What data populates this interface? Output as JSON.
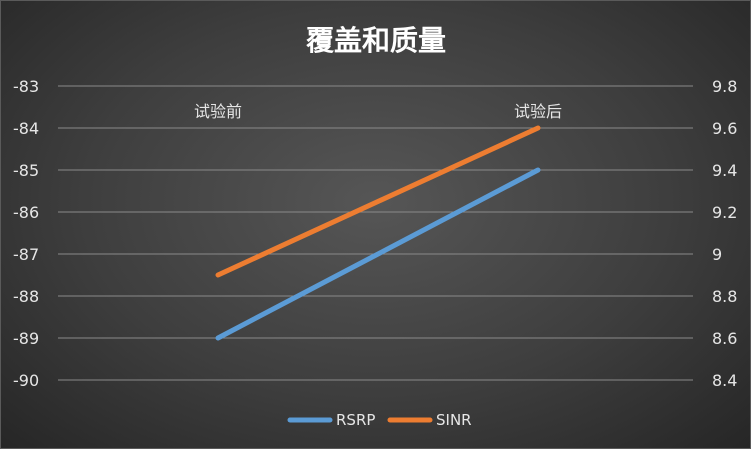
{
  "chart_data": {
    "type": "line",
    "title": "覆盖和质量",
    "categories": [
      "试验前",
      "试验后"
    ],
    "y_left": {
      "range": [
        -90,
        -83
      ],
      "ticks": [
        -83,
        -84,
        -85,
        -86,
        -87,
        -88,
        -89,
        -90
      ]
    },
    "y_right": {
      "range": [
        8.4,
        9.8
      ],
      "ticks": [
        "9.8",
        "9.6",
        "9.4",
        "9.2",
        "9",
        "8.8",
        "8.6",
        "8.4"
      ]
    },
    "series": [
      {
        "name": "RSRP",
        "axis": "left",
        "values": [
          -89,
          -85
        ],
        "color": "#5b9bd5"
      },
      {
        "name": "SINR",
        "axis": "right",
        "values": [
          8.9,
          9.6
        ],
        "color": "#ed7d31"
      }
    ],
    "grid": true,
    "legend_position": "bottom"
  }
}
